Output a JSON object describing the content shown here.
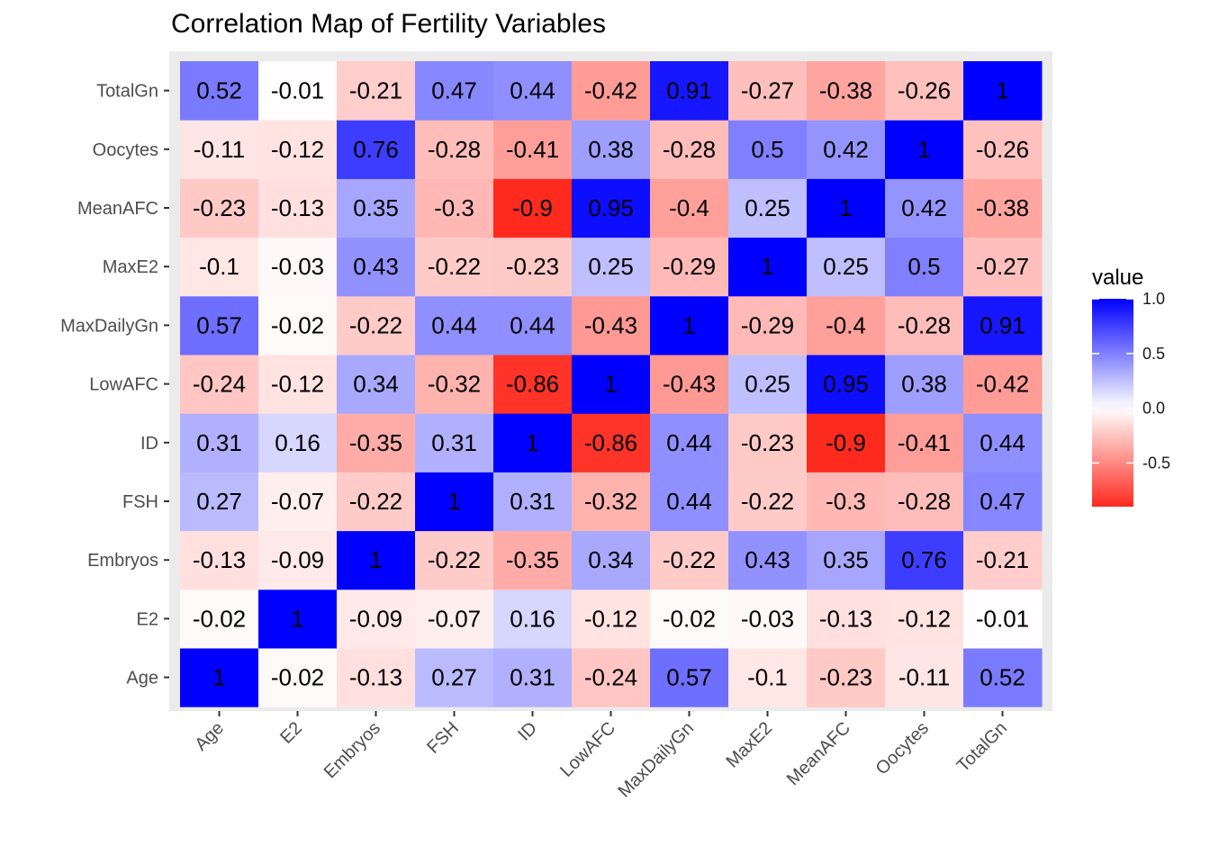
{
  "chart_data": {
    "type": "heatmap",
    "title": "Correlation Map of Fertility Variables",
    "xlabel": "",
    "ylabel": "",
    "x_categories": [
      "Age",
      "E2",
      "Embryos",
      "FSH",
      "ID",
      "LowAFC",
      "MaxDailyGn",
      "MaxE2",
      "MeanAFC",
      "Oocytes",
      "TotalGn"
    ],
    "y_categories": [
      "Age",
      "E2",
      "Embryos",
      "FSH",
      "ID",
      "LowAFC",
      "MaxDailyGn",
      "MaxE2",
      "MeanAFC",
      "Oocytes",
      "TotalGn"
    ],
    "values": [
      [
        1,
        -0.02,
        -0.13,
        0.27,
        0.31,
        -0.24,
        0.57,
        -0.1,
        -0.23,
        -0.11,
        0.52
      ],
      [
        -0.02,
        1,
        -0.09,
        -0.07,
        0.16,
        -0.12,
        -0.02,
        -0.03,
        -0.13,
        -0.12,
        -0.01
      ],
      [
        -0.13,
        -0.09,
        1,
        -0.22,
        -0.35,
        0.34,
        -0.22,
        0.43,
        0.35,
        0.76,
        -0.21
      ],
      [
        0.27,
        -0.07,
        -0.22,
        1,
        0.31,
        -0.32,
        0.44,
        -0.22,
        -0.3,
        -0.28,
        0.47
      ],
      [
        0.31,
        0.16,
        -0.35,
        0.31,
        1,
        -0.86,
        0.44,
        -0.23,
        -0.9,
        -0.41,
        0.44
      ],
      [
        -0.24,
        -0.12,
        0.34,
        -0.32,
        -0.86,
        1,
        -0.43,
        0.25,
        0.95,
        0.38,
        -0.42
      ],
      [
        0.57,
        -0.02,
        -0.22,
        0.44,
        0.44,
        -0.43,
        1,
        -0.29,
        -0.4,
        -0.28,
        0.91
      ],
      [
        -0.1,
        -0.03,
        0.43,
        -0.22,
        -0.23,
        0.25,
        -0.29,
        1,
        0.25,
        0.5,
        -0.27
      ],
      [
        -0.23,
        -0.13,
        0.35,
        -0.3,
        -0.9,
        0.95,
        -0.4,
        0.25,
        1,
        0.42,
        -0.38
      ],
      [
        -0.11,
        -0.12,
        0.76,
        -0.28,
        -0.41,
        0.38,
        -0.28,
        0.5,
        0.42,
        1,
        -0.26
      ],
      [
        0.52,
        -0.01,
        -0.21,
        0.47,
        0.44,
        -0.42,
        0.91,
        -0.27,
        -0.38,
        -0.26,
        1
      ]
    ],
    "value_range": [
      -0.9,
      1
    ],
    "colors": {
      "low": "#ff2a1e",
      "mid": "#ffffff",
      "high": "#0000ff",
      "panel": "#ebebeb"
    },
    "legend": {
      "title": "value",
      "placement": "right",
      "ticks": [
        1.0,
        0.5,
        0.0,
        -0.5
      ],
      "tick_labels": [
        "1.0",
        "0.5",
        "0.0",
        "-0.5"
      ]
    }
  }
}
